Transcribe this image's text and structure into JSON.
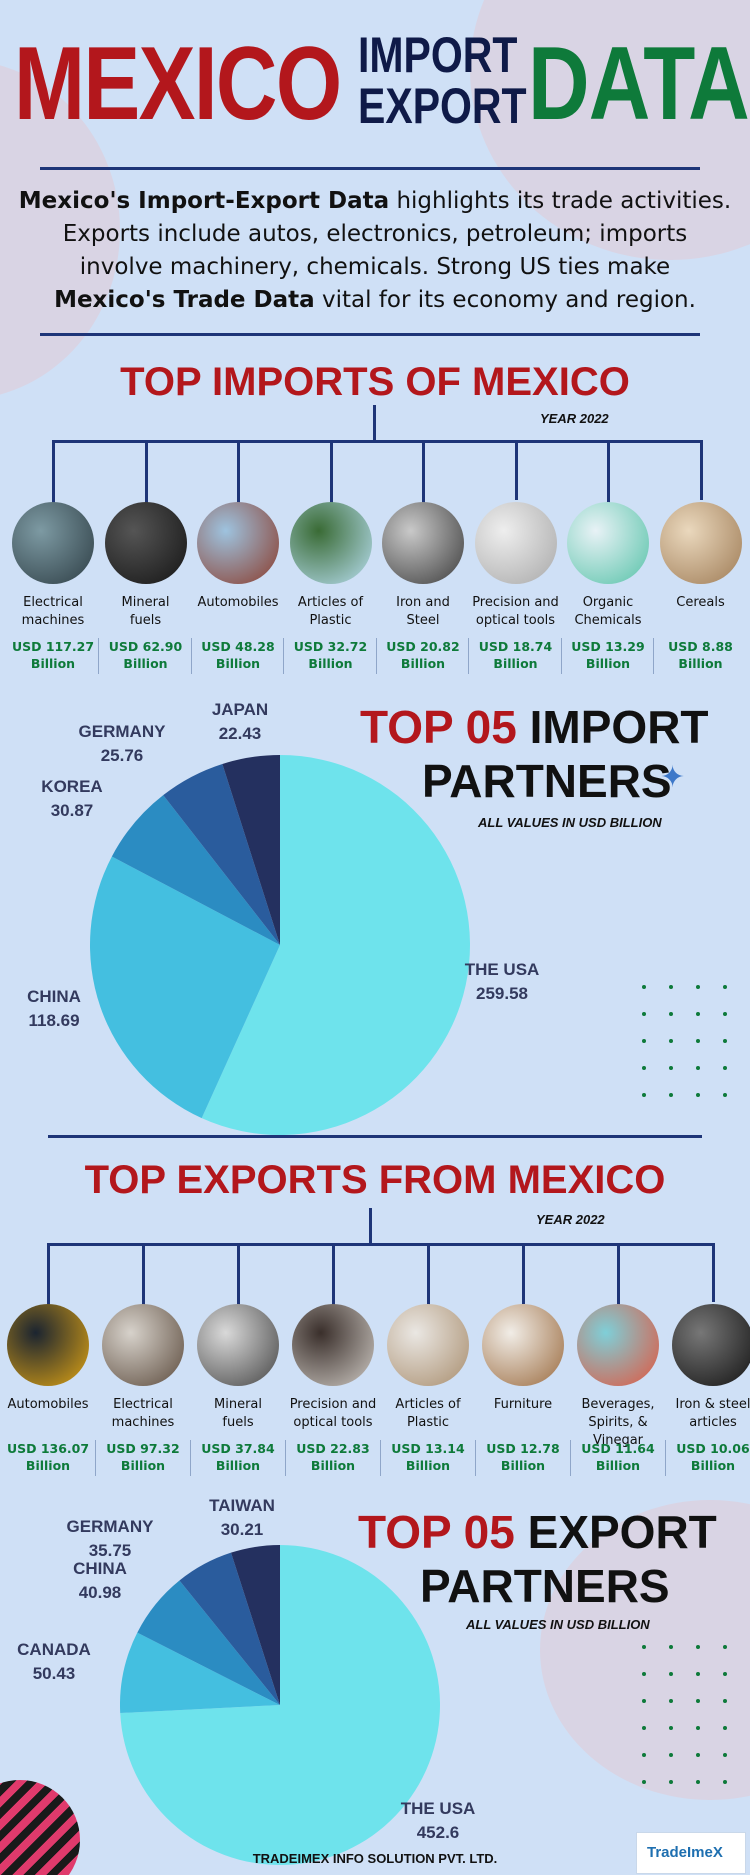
{
  "header": {
    "w1": "MEXICO",
    "w2": "IMPORT",
    "w3": "EXPORT",
    "w4": "DATA"
  },
  "intro": {
    "l1_bold": "Mexico's Import-Export Data",
    "l1_rest": " highlights its trade activities.",
    "l2": "Exports include autos, electronics, petroleum; imports",
    "l3": "involve machinery, chemicals. Strong US ties make",
    "l4_bold": "Mexico's Trade Data",
    "l4_rest": " vital for its economy and region."
  },
  "imports": {
    "title": "TOP IMPORTS OF MEXICO",
    "year": "YEAR 2022",
    "items": [
      {
        "l1": "Electrical",
        "l2": "machines",
        "v1": "USD 117.27",
        "v2": "Billion",
        "icon": "electrical-machines-icon",
        "c1": "#7d9aa3",
        "c2": "#2d3d44"
      },
      {
        "l1": "Mineral",
        "l2": "fuels",
        "v1": "USD 62.90",
        "v2": "Billion",
        "icon": "mineral-fuels-icon",
        "c1": "#555555",
        "c2": "#141414"
      },
      {
        "l1": "Automobiles",
        "l2": "",
        "v1": "USD 48.28",
        "v2": "Billion",
        "icon": "automobile-icon",
        "c1": "#9ec3df",
        "c2": "#8a3a2a"
      },
      {
        "l1": "Articles of",
        "l2": "Plastic",
        "v1": "USD 32.72",
        "v2": "Billion",
        "icon": "plastic-icon",
        "c1": "#3a6b35",
        "c2": "#b9dff2"
      },
      {
        "l1": "Iron and",
        "l2": "Steel",
        "v1": "USD 20.82",
        "v2": "Billion",
        "icon": "iron-steel-icon",
        "c1": "#c9c9c9",
        "c2": "#3b3b3b"
      },
      {
        "l1": "Precision and",
        "l2": "optical tools",
        "v1": "USD 18.74",
        "v2": "Billion",
        "icon": "precision-tools-icon",
        "c1": "#eeeeee",
        "c2": "#a8a8a8"
      },
      {
        "l1": "Organic",
        "l2": "Chemicals",
        "v1": "USD 13.29",
        "v2": "Billion",
        "icon": "chemicals-icon",
        "c1": "#e8f2f6",
        "c2": "#56c2a8"
      },
      {
        "l1": "Cereals",
        "l2": "",
        "v1": "USD 8.88",
        "v2": "Billion",
        "icon": "cereals-icon",
        "c1": "#ead8bd",
        "c2": "#9e7b55"
      }
    ]
  },
  "import_partners": {
    "title_red": "TOP 05",
    "title_dark": " IMPORT",
    "title_line2": "PARTNERS",
    "note": "ALL VALUES IN USD BILLION",
    "labels": [
      {
        "name": "JAPAN",
        "value": "22.43"
      },
      {
        "name": "GERMANY",
        "value": "25.76"
      },
      {
        "name": "KOREA",
        "value": "30.87"
      },
      {
        "name": "CHINA",
        "value": "118.69"
      },
      {
        "name": "THE USA",
        "value": "259.58"
      }
    ]
  },
  "exports": {
    "title": "TOP EXPORTS FROM MEXICO",
    "year": "YEAR 2022",
    "items": [
      {
        "l1": "Automobiles",
        "l2": "",
        "v1": "USD 136.07",
        "v2": "Billion",
        "icon": "automobile-icon",
        "c1": "#1b2430",
        "c2": "#e0a514"
      },
      {
        "l1": "Electrical",
        "l2": "machines",
        "v1": "USD 97.32",
        "v2": "Billion",
        "icon": "electrical-machines-icon",
        "c1": "#d7d2cb",
        "c2": "#5b4a3c"
      },
      {
        "l1": "Mineral",
        "l2": "fuels",
        "v1": "USD 37.84",
        "v2": "Billion",
        "icon": "mineral-fuels-icon",
        "c1": "#d9d9d9",
        "c2": "#444444"
      },
      {
        "l1": "Precision and",
        "l2": "optical tools",
        "v1": "USD 22.83",
        "v2": "Billion",
        "icon": "precision-tools-icon",
        "c1": "#3a2f2b",
        "c2": "#cfcac4"
      },
      {
        "l1": "Articles of",
        "l2": "Plastic",
        "v1": "USD 13.14",
        "v2": "Billion",
        "icon": "plastic-icon",
        "c1": "#eae7e3",
        "c2": "#a88d6d"
      },
      {
        "l1": "Furniture",
        "l2": "",
        "v1": "USD 12.78",
        "v2": "Billion",
        "icon": "furniture-icon",
        "c1": "#f1ede7",
        "c2": "#9a6a3e"
      },
      {
        "l1": "Beverages,",
        "l2": "Spirits, & Vinegar",
        "v1": "USD 11.64",
        "v2": "Billion",
        "icon": "beverages-icon",
        "c1": "#7fcfd8",
        "c2": "#e2543d"
      },
      {
        "l1": "Iron & steel",
        "l2": "articles",
        "v1": "USD 10.06",
        "v2": "Billion",
        "icon": "steel-pipes-icon",
        "c1": "#777777",
        "c2": "#111111"
      }
    ]
  },
  "export_partners": {
    "title_red": "TOP 05",
    "title_dark": " EXPORT",
    "title_line2": "PARTNERS",
    "note": "ALL VALUES IN USD BILLION",
    "labels": [
      {
        "name": "TAIWAN",
        "value": "30.21"
      },
      {
        "name": "GERMANY",
        "value": "35.75"
      },
      {
        "name": "CHINA",
        "value": "40.98"
      },
      {
        "name": "CANADA",
        "value": "50.43"
      },
      {
        "name": "THE USA",
        "value": "452.6"
      }
    ]
  },
  "chart_data": [
    {
      "type": "pie",
      "categories": [
        "THE USA",
        "CHINA",
        "KOREA",
        "GERMANY",
        "JAPAN"
      ],
      "values": [
        259.58,
        118.69,
        30.87,
        25.76,
        22.43
      ],
      "colors": [
        "#6ee3ec",
        "#44bfe0",
        "#2b8cc2",
        "#2a5c9d",
        "#24305f"
      ]
    },
    {
      "type": "pie",
      "categories": [
        "THE USA",
        "CANADA",
        "CHINA",
        "GERMANY",
        "TAIWAN"
      ],
      "values": [
        452.6,
        50.43,
        40.98,
        35.75,
        30.21
      ],
      "colors": [
        "#6ee3ec",
        "#44bfe0",
        "#2b8cc2",
        "#2a5c9d",
        "#24305f"
      ]
    }
  ],
  "footer": {
    "company": "TRADEIMEX INFO SOLUTION PVT. LTD.",
    "logo": "TradeImeX"
  }
}
